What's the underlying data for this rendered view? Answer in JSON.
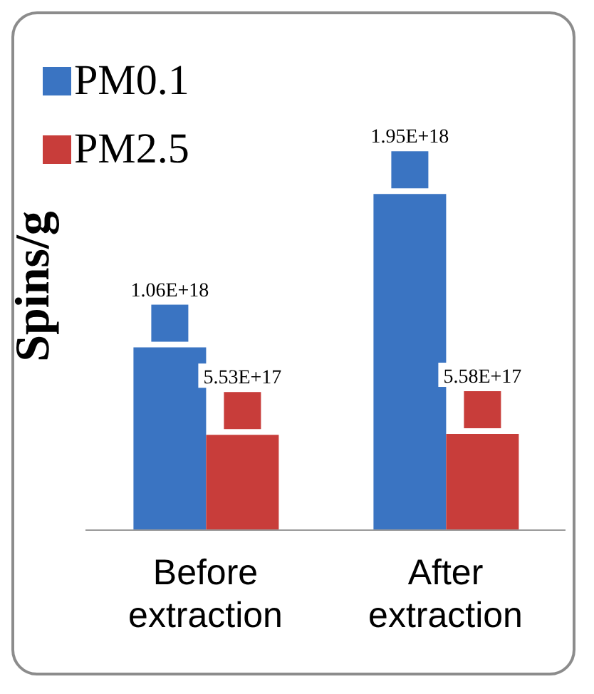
{
  "chart_data": {
    "type": "bar",
    "ylabel": "Spins/g",
    "categories": [
      "Before\nextraction",
      "After\nextraction"
    ],
    "series": [
      {
        "name": "PM0.1",
        "color": "#3a74c2",
        "values": [
          1.06e+18,
          1.95e+18
        ],
        "value_labels": [
          "1.06E+18",
          "1.95E+18"
        ]
      },
      {
        "name": "PM2.5",
        "color": "#c83d3a",
        "values": [
          5.53e+17,
          5.58e+17
        ],
        "value_labels": [
          "5.53E+17",
          "5.58E+17"
        ]
      }
    ],
    "legend": "top left",
    "grid": false
  }
}
